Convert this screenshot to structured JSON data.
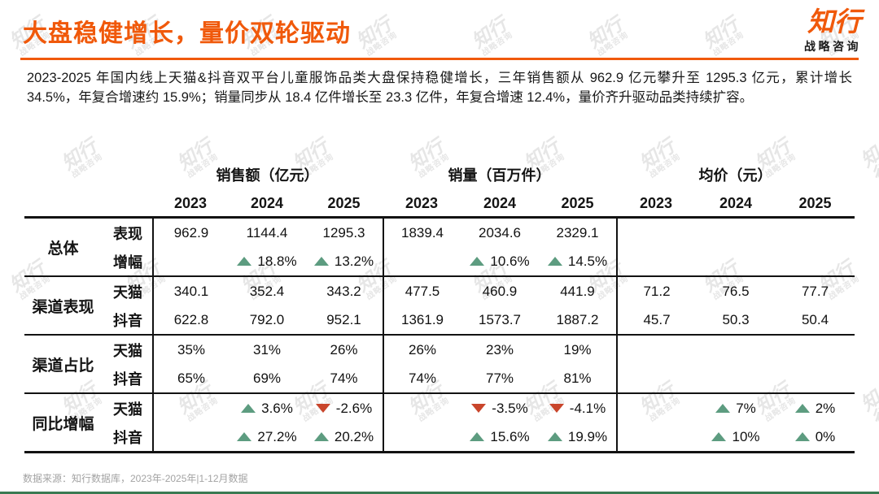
{
  "header": {
    "title": "大盘稳健增长，量价双轮驱动",
    "logo": {
      "name": "知行",
      "subtitle": "战略咨询"
    }
  },
  "summary": "2023-2025 年国内线上天猫&抖音双平台儿童服饰品类大盘保持稳健增长，三年销售额从 962.9 亿元攀升至 1295.3 亿元，累计增长 34.5%，年复合增速约 15.9%；销量同步从 18.4 亿件增长至 23.3 亿件，年复合增速 12.4%，量价齐升驱动品类持续扩容。",
  "table": {
    "col_groups": [
      {
        "title": "销售额（亿元）",
        "years": [
          "2023",
          "2024",
          "2025"
        ]
      },
      {
        "title": "销量（百万件）",
        "years": [
          "2023",
          "2024",
          "2025"
        ]
      },
      {
        "title": "均价（元）",
        "years": [
          "2023",
          "2024",
          "2025"
        ]
      }
    ],
    "row_groups": [
      {
        "label": "总体",
        "rows": [
          {
            "sub": "表现",
            "cells": [
              "962.9",
              "1144.4",
              "1295.3",
              "1839.4",
              "2034.6",
              "2329.1",
              "",
              "",
              ""
            ]
          },
          {
            "sub": "增幅",
            "cells": [
              "",
              {
                "i": "up",
                "t": "18.8%"
              },
              {
                "i": "up",
                "t": "13.2%"
              },
              "",
              {
                "i": "up",
                "t": "10.6%"
              },
              {
                "i": "up",
                "t": "14.5%"
              },
              "",
              "",
              ""
            ]
          }
        ]
      },
      {
        "label": "渠道表现",
        "rows": [
          {
            "sub": "天猫",
            "cells": [
              "340.1",
              "352.4",
              "343.2",
              "477.5",
              "460.9",
              "441.9",
              "71.2",
              "76.5",
              "77.7"
            ]
          },
          {
            "sub": "抖音",
            "cells": [
              "622.8",
              "792.0",
              "952.1",
              "1361.9",
              "1573.7",
              "1887.2",
              "45.7",
              "50.3",
              "50.4"
            ]
          }
        ]
      },
      {
        "label": "渠道占比",
        "rows": [
          {
            "sub": "天猫",
            "cells": [
              "35%",
              "31%",
              "26%",
              "26%",
              "23%",
              "19%",
              "",
              "",
              ""
            ]
          },
          {
            "sub": "抖音",
            "cells": [
              "65%",
              "69%",
              "74%",
              "74%",
              "77%",
              "81%",
              "",
              "",
              ""
            ]
          }
        ]
      },
      {
        "label": "同比增幅",
        "rows": [
          {
            "sub": "天猫",
            "cells": [
              "",
              {
                "i": "up",
                "t": "3.6%"
              },
              {
                "i": "down",
                "t": "-2.6%"
              },
              "",
              {
                "i": "down",
                "t": "-3.5%"
              },
              {
                "i": "down",
                "t": "-4.1%"
              },
              "",
              {
                "i": "up",
                "t": "7%"
              },
              {
                "i": "up",
                "t": "2%"
              }
            ]
          },
          {
            "sub": "抖音",
            "cells": [
              "",
              {
                "i": "up",
                "t": "27.2%"
              },
              {
                "i": "up",
                "t": "20.2%"
              },
              "",
              {
                "i": "up",
                "t": "15.6%"
              },
              {
                "i": "up",
                "t": "19.9%"
              },
              "",
              {
                "i": "up",
                "t": "10%"
              },
              {
                "i": "up",
                "t": "0%"
              }
            ]
          }
        ]
      }
    ]
  },
  "footer": {
    "source": "数据来源：知行数据库，2023年-2025年|1-12月数据"
  },
  "watermark": {
    "line1": "知行",
    "line2": "战略咨询"
  },
  "colors": {
    "accent_orange": "#F0590B",
    "up_green": "#5D9C80",
    "down_red": "#C9452B",
    "watermark_gray": "#D2D2D2",
    "bottom_bar_green": "#3A7A52"
  }
}
